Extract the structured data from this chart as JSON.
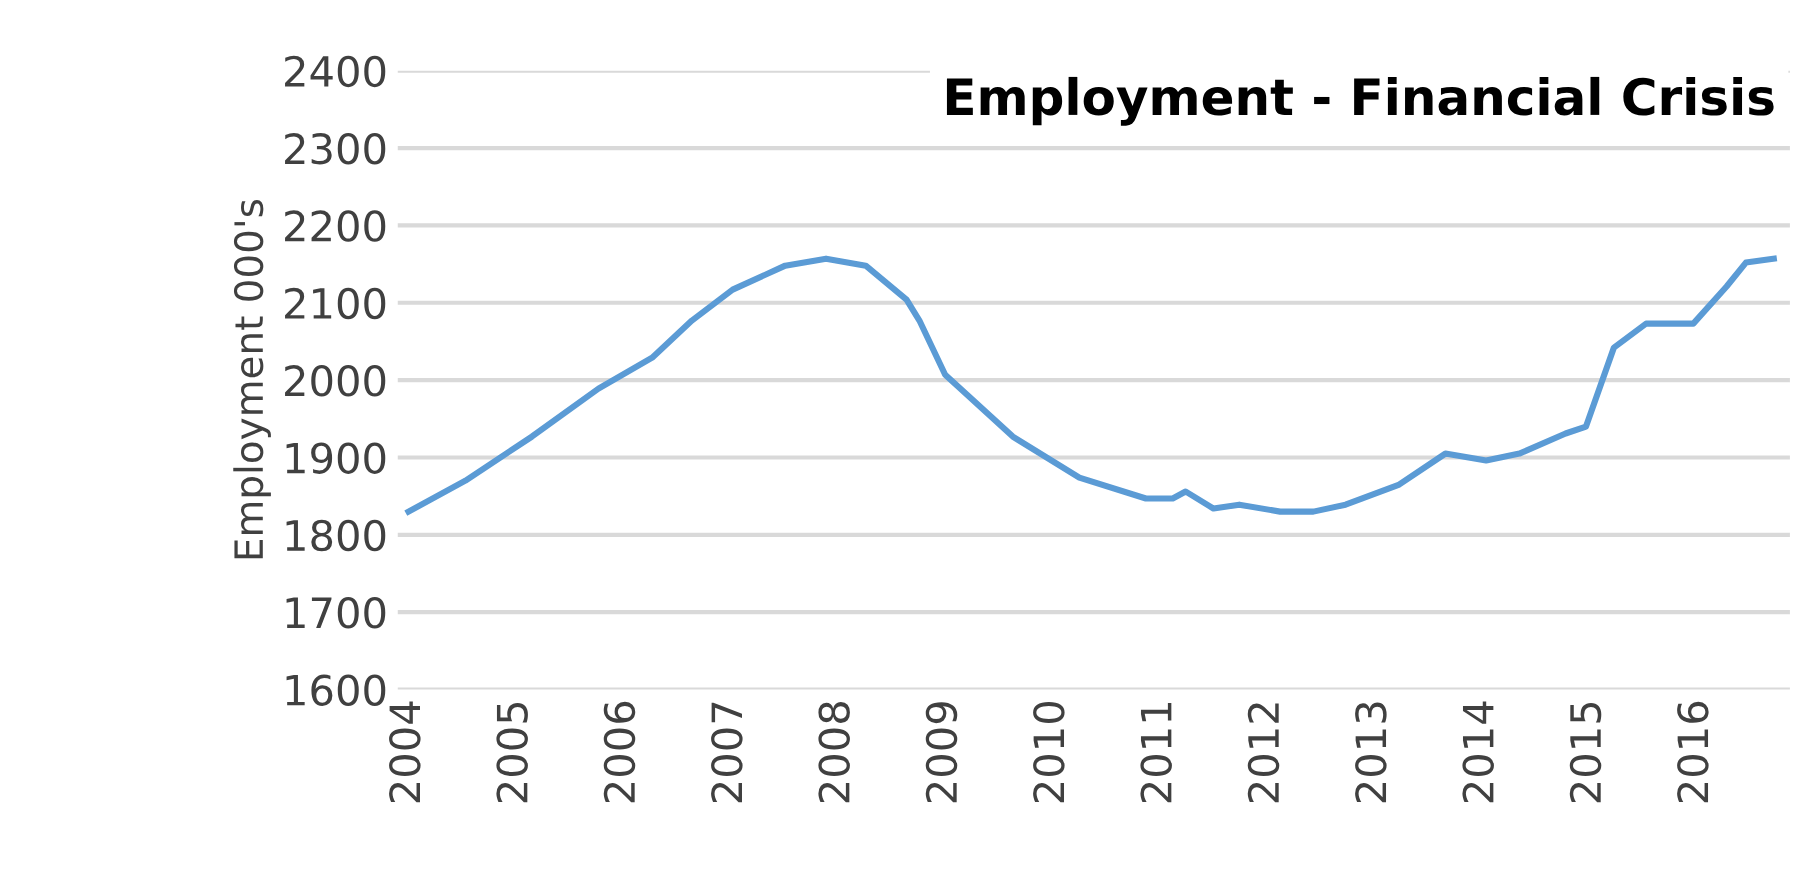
{
  "chart_data": {
    "type": "line",
    "title": "Employment - Financial Crisis",
    "ylabel": "Employment 000's",
    "x": [
      2004.0,
      2004.53,
      2005.15,
      2005.77,
      2006.27,
      2006.64,
      2007.02,
      2007.51,
      2007.89,
      2008.26,
      2008.64,
      2008.76,
      2009.0,
      2009.63,
      2010.25,
      2010.87,
      2011.12,
      2011.24,
      2011.5,
      2011.74,
      2012.12,
      2012.43,
      2012.73,
      2013.23,
      2013.66,
      2014.04,
      2014.35,
      2014.78,
      2014.97,
      2015.23,
      2015.53,
      2015.97,
      2016.28,
      2016.46,
      2016.72
    ],
    "series": [
      {
        "color": "#5b9bd5",
        "values": [
          1830,
          1870,
          1927,
          1989,
          2029,
          2077,
          2117,
          2148,
          2157,
          2148,
          2104,
          2077,
          2007,
          1927,
          1874,
          1847,
          1847,
          1856,
          1834,
          1839,
          1830,
          1830,
          1839,
          1865,
          1905,
          1896,
          1905,
          1931,
          1940,
          2042,
          2073,
          2073,
          2121,
          2152,
          2157
        ]
      }
    ],
    "xlim": [
      2003.9,
      2016.87
    ],
    "xticks": [
      2004,
      2005,
      2006,
      2007,
      2008,
      2009,
      2010,
      2011,
      2012,
      2013,
      2014,
      2015,
      2016
    ],
    "ylim": [
      1600,
      2400
    ],
    "yticks": [
      1600,
      1700,
      1800,
      1900,
      2000,
      2100,
      2200,
      2300,
      2400
    ],
    "grid": "y",
    "legend": false,
    "marker": "none",
    "line_style": "solid"
  }
}
